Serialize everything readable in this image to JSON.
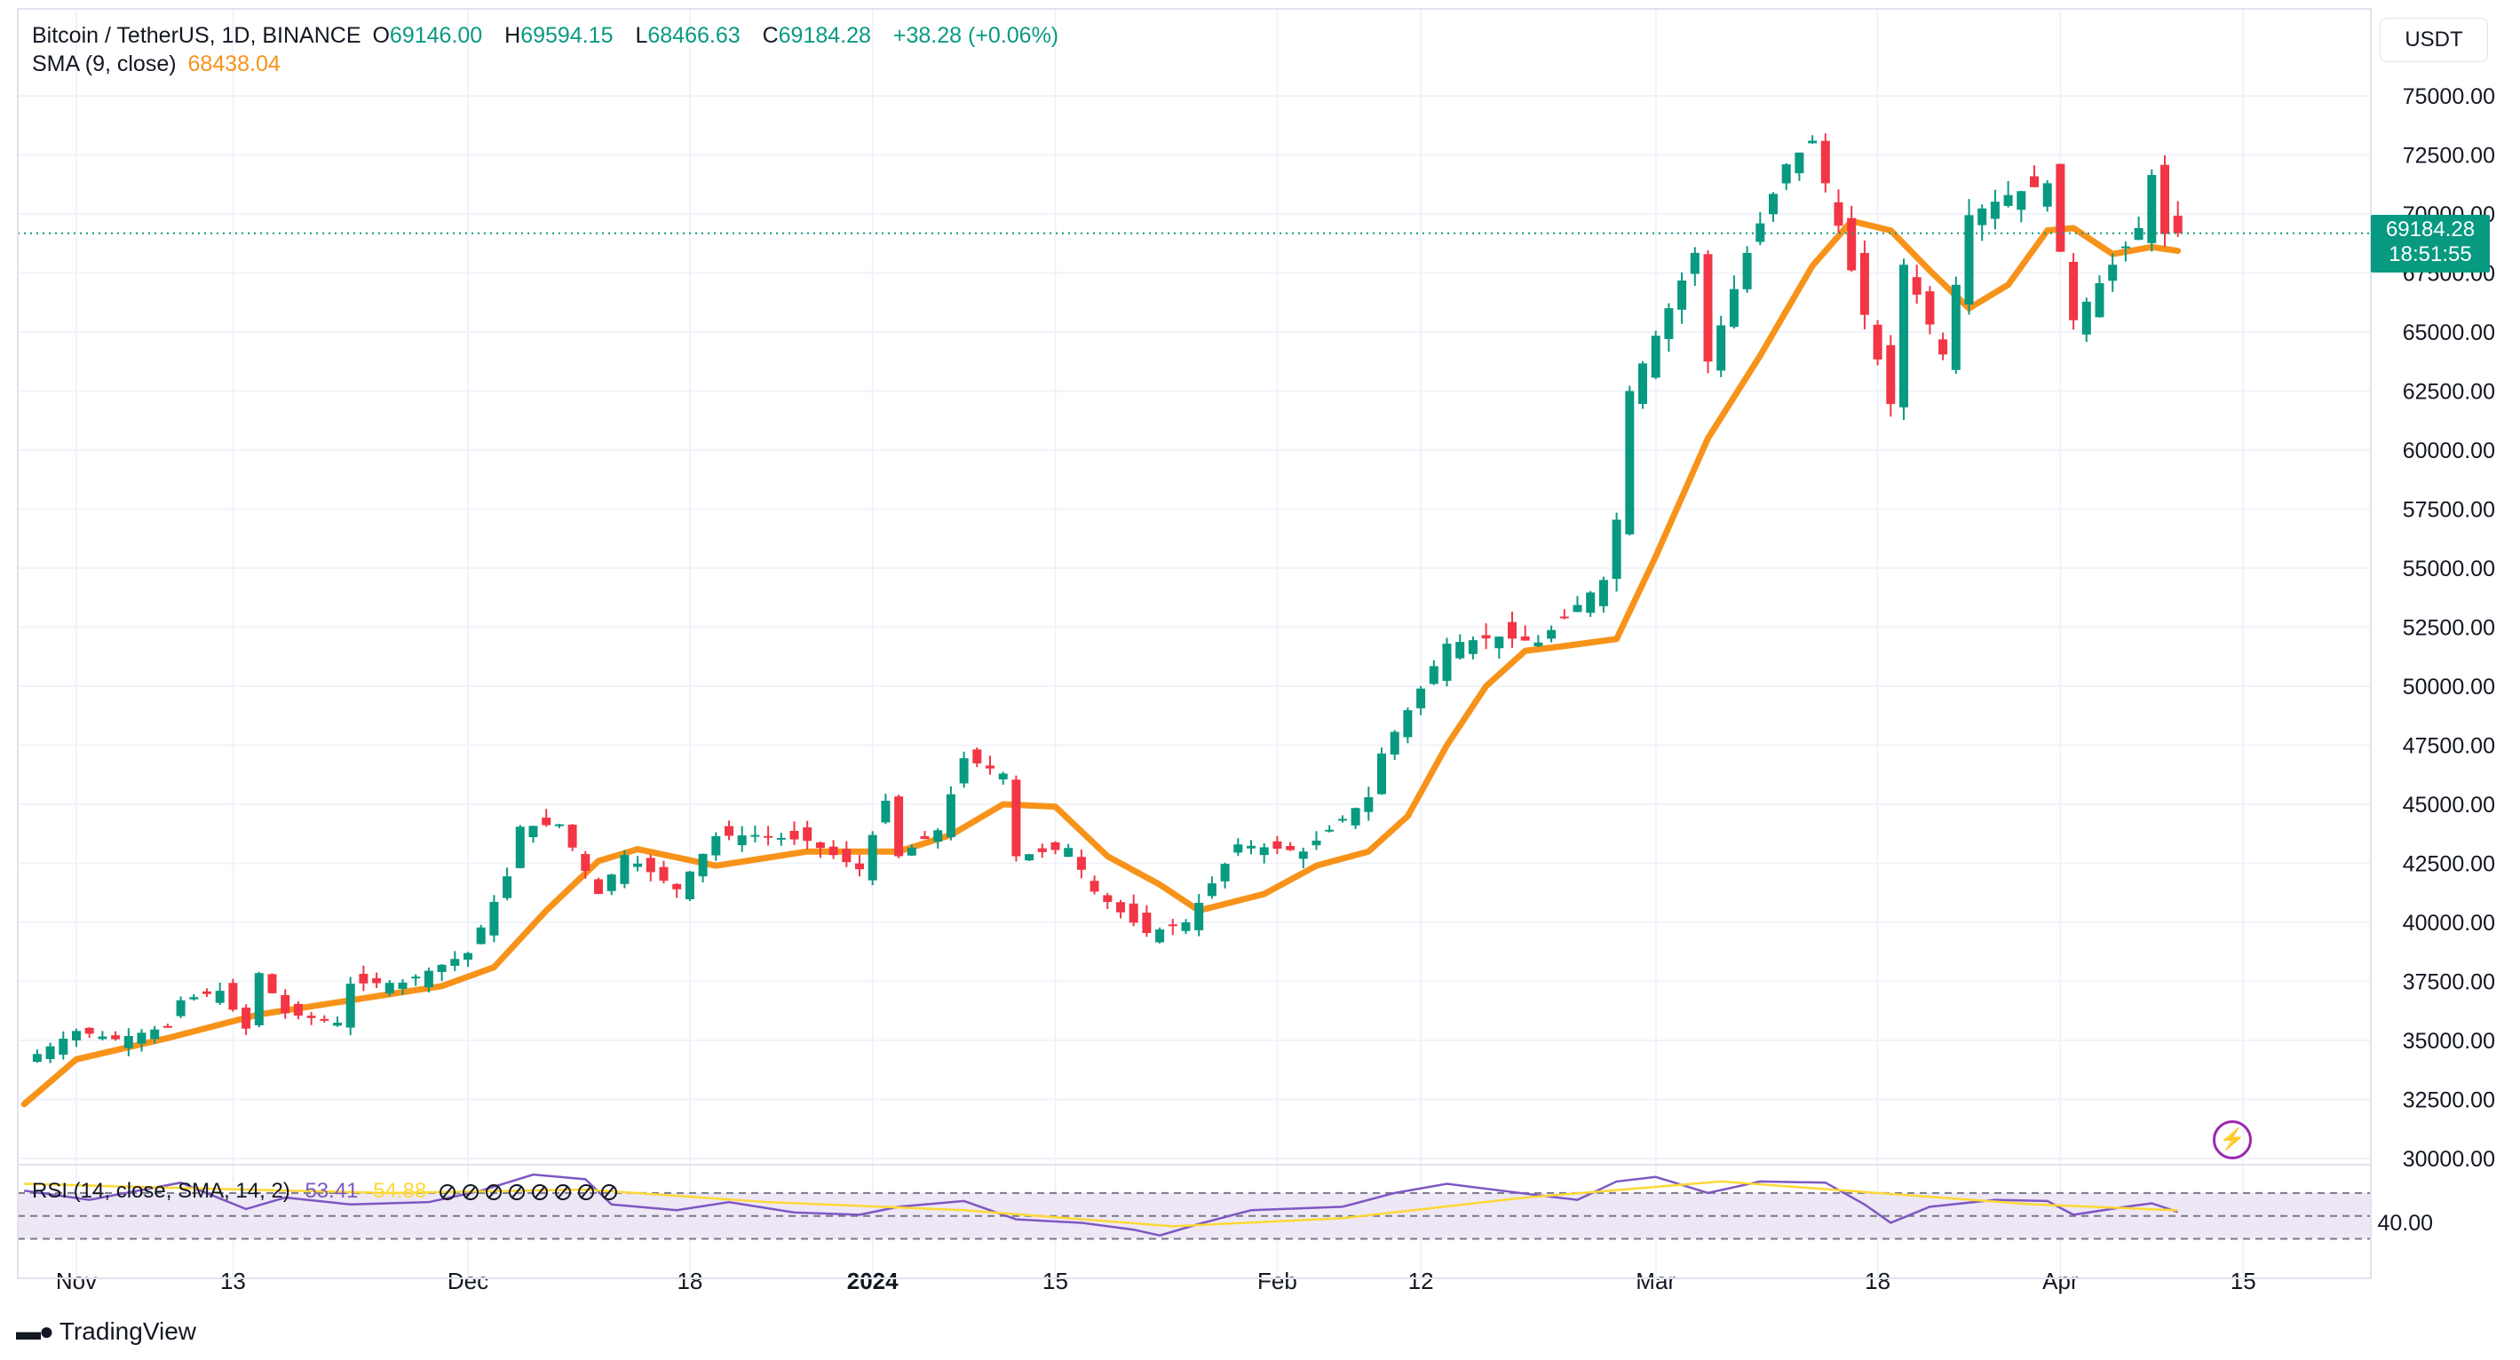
{
  "legend": {
    "symbol": "Bitcoin / TetherUS, 1D, BINANCE",
    "open_label": "O",
    "open": "69146.00",
    "high_label": "H",
    "high": "69594.15",
    "low_label": "L",
    "low": "68466.63",
    "close_label": "C",
    "close": "69184.28",
    "change": "+38.28 (+0.06%)",
    "sma_label": "SMA (9, close)",
    "sma_value": "68438.04"
  },
  "rsi_legend": {
    "label": "RSI (14, close, SMA, 14, 2)",
    "value": "53.41",
    "sma_value": "54.88"
  },
  "currency": "USDT",
  "price_tag": {
    "price": "69184.28",
    "countdown": "18:51:55"
  },
  "brand": "TradingView",
  "colors": {
    "up": "#089981",
    "down": "#f23645",
    "sma": "#f7931a",
    "rsi": "#7e57c2",
    "rsi_sma": "#fdd835",
    "rsi_band": "#ede7f6"
  },
  "icons": {
    "flash": "lightning-bolt-icon",
    "logo": "tradingview-logo-icon"
  },
  "chart_data": {
    "type": "candlestick",
    "title": "Bitcoin / TetherUS, 1D, BINANCE",
    "ylim": [
      30000,
      76300
    ],
    "yticks": [
      "75000.00",
      "72500.00",
      "70000.00",
      "67500.00",
      "65000.00",
      "62500.00",
      "60000.00",
      "57500.00",
      "55000.00",
      "52500.00",
      "50000.00",
      "47500.00",
      "45000.00",
      "42500.00",
      "40000.00",
      "37500.00",
      "35000.00",
      "32500.00",
      "30000.00"
    ],
    "xticks": [
      {
        "label": "Nov",
        "date": "2023-11-01"
      },
      {
        "label": "13",
        "date": "2023-11-13"
      },
      {
        "label": "Dec",
        "date": "2023-12-01"
      },
      {
        "label": "18",
        "date": "2023-12-18"
      },
      {
        "label": "2024",
        "date": "2024-01-01"
      },
      {
        "label": "15",
        "date": "2024-01-15"
      },
      {
        "label": "Feb",
        "date": "2024-02-01"
      },
      {
        "label": "12",
        "date": "2024-02-12"
      },
      {
        "label": "Mar",
        "date": "2024-03-01"
      },
      {
        "label": "18",
        "date": "2024-03-18"
      },
      {
        "label": "Apr",
        "date": "2024-04-01"
      },
      {
        "label": "15",
        "date": "2024-04-15"
      }
    ],
    "last_price": 69184.28,
    "close_series": [
      {
        "date": "2023-10-28",
        "c": 34100
      },
      {
        "date": "2023-11-01",
        "c": 35400
      },
      {
        "date": "2023-11-04",
        "c": 35050
      },
      {
        "date": "2023-11-08",
        "c": 35600
      },
      {
        "date": "2023-11-09",
        "c": 36700
      },
      {
        "date": "2023-11-12",
        "c": 37100
      },
      {
        "date": "2023-11-14",
        "c": 35500
      },
      {
        "date": "2023-11-15",
        "c": 37850
      },
      {
        "date": "2023-11-17",
        "c": 36150
      },
      {
        "date": "2023-11-21",
        "c": 35750
      },
      {
        "date": "2023-11-22",
        "c": 37400
      },
      {
        "date": "2023-11-26",
        "c": 37450
      },
      {
        "date": "2023-12-01",
        "c": 38700
      },
      {
        "date": "2023-12-04",
        "c": 41950
      },
      {
        "date": "2023-12-05",
        "c": 44050
      },
      {
        "date": "2023-12-08",
        "c": 44150
      },
      {
        "date": "2023-12-11",
        "c": 41200
      },
      {
        "date": "2023-12-13",
        "c": 42850
      },
      {
        "date": "2023-12-17",
        "c": 41400
      },
      {
        "date": "2023-12-20",
        "c": 43650
      },
      {
        "date": "2023-12-23",
        "c": 43700
      },
      {
        "date": "2023-12-27",
        "c": 43450
      },
      {
        "date": "2023-12-31",
        "c": 42250
      },
      {
        "date": "2024-01-02",
        "c": 45150
      },
      {
        "date": "2024-01-03",
        "c": 42800
      },
      {
        "date": "2024-01-06",
        "c": 43900
      },
      {
        "date": "2024-01-08",
        "c": 46950
      },
      {
        "date": "2024-01-11",
        "c": 46300
      },
      {
        "date": "2024-01-12",
        "c": 42800
      },
      {
        "date": "2024-01-16",
        "c": 43150
      },
      {
        "date": "2024-01-18",
        "c": 41300
      },
      {
        "date": "2024-01-22",
        "c": 39550
      },
      {
        "date": "2024-01-25",
        "c": 40000
      },
      {
        "date": "2024-01-29",
        "c": 43300
      },
      {
        "date": "2024-02-03",
        "c": 43000
      },
      {
        "date": "2024-02-08",
        "c": 45300
      },
      {
        "date": "2024-02-09",
        "c": 47150
      },
      {
        "date": "2024-02-12",
        "c": 49900
      },
      {
        "date": "2024-02-14",
        "c": 51800
      },
      {
        "date": "2024-02-18",
        "c": 52100
      },
      {
        "date": "2024-02-21",
        "c": 51850
      },
      {
        "date": "2024-02-26",
        "c": 54500
      },
      {
        "date": "2024-02-27",
        "c": 57050
      },
      {
        "date": "2024-02-28",
        "c": 62500
      },
      {
        "date": "2024-03-04",
        "c": 68350
      },
      {
        "date": "2024-03-05",
        "c": 63750
      },
      {
        "date": "2024-03-08",
        "c": 68350
      },
      {
        "date": "2024-03-11",
        "c": 72100
      },
      {
        "date": "2024-03-13",
        "c": 73100
      },
      {
        "date": "2024-03-15",
        "c": 69500
      },
      {
        "date": "2024-03-19",
        "c": 61950
      },
      {
        "date": "2024-03-20",
        "c": 67850
      },
      {
        "date": "2024-03-23",
        "c": 64050
      },
      {
        "date": "2024-03-25",
        "c": 69950
      },
      {
        "date": "2024-03-28",
        "c": 70800
      },
      {
        "date": "2024-03-31",
        "c": 71300
      },
      {
        "date": "2024-04-02",
        "c": 65500
      },
      {
        "date": "2024-04-05",
        "c": 67850
      },
      {
        "date": "2024-04-07",
        "c": 69400
      },
      {
        "date": "2024-04-08",
        "c": 71650
      },
      {
        "date": "2024-04-09",
        "c": 69150
      },
      {
        "date": "2024-04-10",
        "c": 69184
      }
    ],
    "sma_series": [
      {
        "date": "2023-10-28",
        "v": 32300
      },
      {
        "date": "2023-11-01",
        "v": 34200
      },
      {
        "date": "2023-11-08",
        "v": 35100
      },
      {
        "date": "2023-11-15",
        "v": 36100
      },
      {
        "date": "2023-11-22",
        "v": 36700
      },
      {
        "date": "2023-11-29",
        "v": 37300
      },
      {
        "date": "2023-12-03",
        "v": 38100
      },
      {
        "date": "2023-12-07",
        "v": 40500
      },
      {
        "date": "2023-12-11",
        "v": 42600
      },
      {
        "date": "2023-12-14",
        "v": 43100
      },
      {
        "date": "2023-12-20",
        "v": 42400
      },
      {
        "date": "2023-12-27",
        "v": 43000
      },
      {
        "date": "2024-01-03",
        "v": 43000
      },
      {
        "date": "2024-01-07",
        "v": 43700
      },
      {
        "date": "2024-01-11",
        "v": 45000
      },
      {
        "date": "2024-01-15",
        "v": 44900
      },
      {
        "date": "2024-01-19",
        "v": 42800
      },
      {
        "date": "2024-01-23",
        "v": 41600
      },
      {
        "date": "2024-01-26",
        "v": 40500
      },
      {
        "date": "2024-01-31",
        "v": 41200
      },
      {
        "date": "2024-02-04",
        "v": 42400
      },
      {
        "date": "2024-02-08",
        "v": 43000
      },
      {
        "date": "2024-02-11",
        "v": 44500
      },
      {
        "date": "2024-02-14",
        "v": 47500
      },
      {
        "date": "2024-02-17",
        "v": 50000
      },
      {
        "date": "2024-02-20",
        "v": 51500
      },
      {
        "date": "2024-02-23",
        "v": 51700
      },
      {
        "date": "2024-02-27",
        "v": 52000
      },
      {
        "date": "2024-03-01",
        "v": 55500
      },
      {
        "date": "2024-03-05",
        "v": 60500
      },
      {
        "date": "2024-03-09",
        "v": 64000
      },
      {
        "date": "2024-03-13",
        "v": 67800
      },
      {
        "date": "2024-03-16",
        "v": 69700
      },
      {
        "date": "2024-03-19",
        "v": 69300
      },
      {
        "date": "2024-03-22",
        "v": 67600
      },
      {
        "date": "2024-03-25",
        "v": 66000
      },
      {
        "date": "2024-03-28",
        "v": 67000
      },
      {
        "date": "2024-03-31",
        "v": 69300
      },
      {
        "date": "2024-04-02",
        "v": 69400
      },
      {
        "date": "2024-04-05",
        "v": 68300
      },
      {
        "date": "2024-04-08",
        "v": 68600
      },
      {
        "date": "2024-04-10",
        "v": 68438
      }
    ],
    "rsi": {
      "yticks": [
        "40.00"
      ],
      "bands": [
        70,
        50,
        30
      ],
      "series": [
        {
          "date": "2023-10-28",
          "v": 72
        },
        {
          "date": "2023-11-02",
          "v": 64
        },
        {
          "date": "2023-11-09",
          "v": 79
        },
        {
          "date": "2023-11-14",
          "v": 56
        },
        {
          "date": "2023-11-17",
          "v": 66
        },
        {
          "date": "2023-11-22",
          "v": 60
        },
        {
          "date": "2023-11-28",
          "v": 62
        },
        {
          "date": "2023-12-02",
          "v": 72
        },
        {
          "date": "2023-12-06",
          "v": 86
        },
        {
          "date": "2023-12-10",
          "v": 82
        },
        {
          "date": "2023-12-12",
          "v": 60
        },
        {
          "date": "2023-12-17",
          "v": 55
        },
        {
          "date": "2023-12-21",
          "v": 62
        },
        {
          "date": "2023-12-26",
          "v": 53
        },
        {
          "date": "2023-12-31",
          "v": 51
        },
        {
          "date": "2024-01-03",
          "v": 58
        },
        {
          "date": "2024-01-08",
          "v": 63
        },
        {
          "date": "2024-01-12",
          "v": 47
        },
        {
          "date": "2024-01-17",
          "v": 44
        },
        {
          "date": "2024-01-21",
          "v": 38
        },
        {
          "date": "2024-01-23",
          "v": 33
        },
        {
          "date": "2024-01-26",
          "v": 43
        },
        {
          "date": "2024-01-30",
          "v": 55
        },
        {
          "date": "2024-02-06",
          "v": 58
        },
        {
          "date": "2024-02-10",
          "v": 70
        },
        {
          "date": "2024-02-14",
          "v": 78
        },
        {
          "date": "2024-02-21",
          "v": 68
        },
        {
          "date": "2024-02-24",
          "v": 64
        },
        {
          "date": "2024-02-27",
          "v": 80
        },
        {
          "date": "2024-03-01",
          "v": 84
        },
        {
          "date": "2024-03-05",
          "v": 70
        },
        {
          "date": "2024-03-09",
          "v": 80
        },
        {
          "date": "2024-03-14",
          "v": 79
        },
        {
          "date": "2024-03-17",
          "v": 60
        },
        {
          "date": "2024-03-19",
          "v": 44
        },
        {
          "date": "2024-03-22",
          "v": 58
        },
        {
          "date": "2024-03-27",
          "v": 64
        },
        {
          "date": "2024-03-31",
          "v": 63
        },
        {
          "date": "2024-04-02",
          "v": 51
        },
        {
          "date": "2024-04-06",
          "v": 58
        },
        {
          "date": "2024-04-08",
          "v": 61
        },
        {
          "date": "2024-04-10",
          "v": 53.41
        }
      ],
      "sma_series": [
        {
          "date": "2023-10-28",
          "v": 78
        },
        {
          "date": "2023-11-10",
          "v": 74
        },
        {
          "date": "2023-11-25",
          "v": 70
        },
        {
          "date": "2023-12-10",
          "v": 73
        },
        {
          "date": "2023-12-24",
          "v": 62
        },
        {
          "date": "2024-01-08",
          "v": 55
        },
        {
          "date": "2024-01-24",
          "v": 41
        },
        {
          "date": "2024-02-06",
          "v": 48
        },
        {
          "date": "2024-02-20",
          "v": 66
        },
        {
          "date": "2024-03-06",
          "v": 80
        },
        {
          "date": "2024-03-18",
          "v": 70
        },
        {
          "date": "2024-03-30",
          "v": 60
        },
        {
          "date": "2024-04-10",
          "v": 54.88
        }
      ]
    }
  }
}
